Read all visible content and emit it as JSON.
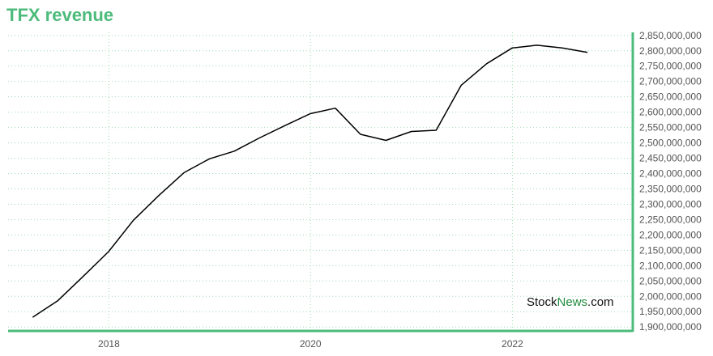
{
  "chart_data": {
    "type": "line",
    "title": "TFX revenue",
    "xlabel": "",
    "ylabel": "",
    "x": [
      "2017-03-31",
      "2017-06-30",
      "2017-09-30",
      "2017-12-31",
      "2018-03-31",
      "2018-06-30",
      "2018-09-30",
      "2018-12-31",
      "2019-03-31",
      "2019-06-30",
      "2019-09-30",
      "2019-12-31",
      "2020-03-31",
      "2020-06-30",
      "2020-09-30",
      "2020-12-31",
      "2021-03-31",
      "2021-06-30",
      "2021-09-30",
      "2021-12-31",
      "2022-03-31",
      "2022-06-30",
      "2022-09-30"
    ],
    "series": [
      {
        "values": [
          1932000000,
          1986000000,
          2065000000,
          2146000000,
          2248000000,
          2328000000,
          2403000000,
          2448000000,
          2473000000,
          2516000000,
          2556000000,
          2595000000,
          2613000000,
          2528000000,
          2508000000,
          2537000000,
          2541000000,
          2688000000,
          2758000000,
          2809000000,
          2818000000,
          2809000000,
          2795000000
        ]
      }
    ],
    "xlim": [
      "2017-01-01",
      "2023-03-10"
    ],
    "ylim": [
      1890000000,
      2860000000
    ],
    "x_ticks": [
      "2018",
      "2020",
      "2022"
    ],
    "y_tick_step": 50000000,
    "y_axis_side": "right",
    "grid": true,
    "line_color": "#000000",
    "axis_color": "#4cbb7b",
    "grid_color": "#9fdcb5"
  },
  "watermark": {
    "part1": "Stock",
    "part2": "News",
    "part3": ".com"
  }
}
